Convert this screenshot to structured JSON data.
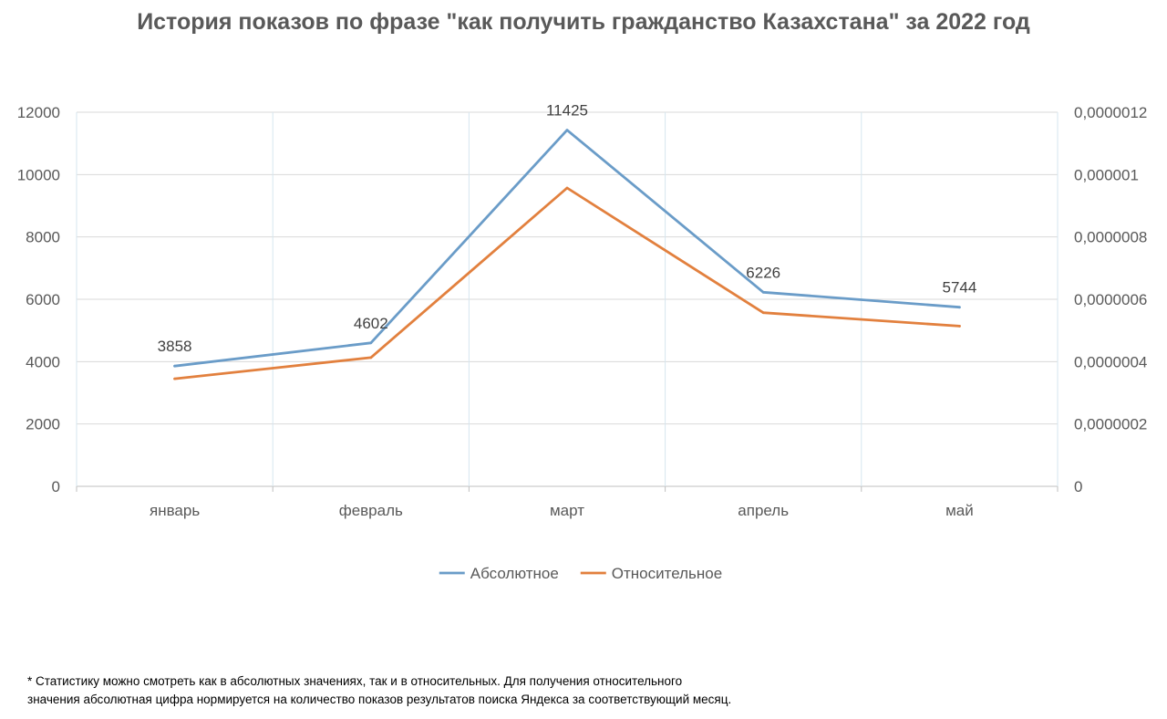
{
  "chart_data": {
    "type": "line",
    "title": "История показов по фразе \"как получить гражданство Казахстана\" за 2022 год",
    "categories": [
      "январь",
      "февраль",
      "март",
      "апрель",
      "май"
    ],
    "y_left": {
      "ticks": [
        "0",
        "2000",
        "4000",
        "6000",
        "8000",
        "10000",
        "12000"
      ],
      "ylim": [
        0,
        12000
      ]
    },
    "y_right": {
      "ticks": [
        "0",
        "0,0000002",
        "0,0000004",
        "0,0000006",
        "0,0000008",
        "0,000001",
        "0,0000012"
      ],
      "ylim": [
        0,
        1.2e-06
      ]
    },
    "series": [
      {
        "name": "Абсолютное",
        "axis": "left",
        "color": "#6A9CC8",
        "values": [
          3858,
          4602,
          11425,
          6226,
          5744
        ],
        "data_labels": [
          "3858",
          "4602",
          "11425",
          "6226",
          "5744"
        ]
      },
      {
        "name": "Относительное",
        "axis": "right",
        "color": "#E2803E",
        "values": [
          3.45e-07,
          4.13e-07,
          9.57e-07,
          5.57e-07,
          5.14e-07
        ]
      }
    ],
    "grid": true,
    "legend_position": "bottom"
  },
  "footnote": {
    "line1": "* Статистику можно смотреть как в абсолютных значениях, так и в относительных. Для получения относительного",
    "line2": "значения абсолютная цифра нормируется на количество показов результатов поиска Яндекса за соответствующий месяц."
  }
}
